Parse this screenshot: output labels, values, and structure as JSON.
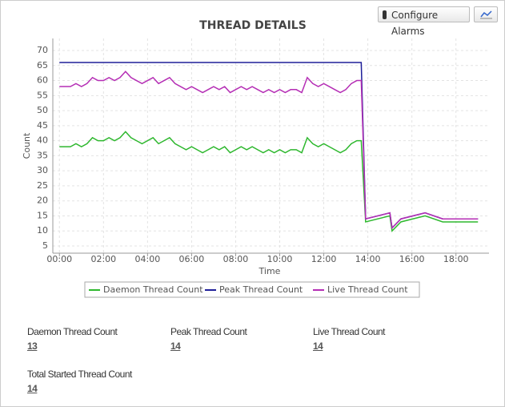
{
  "toolbar": {
    "configure_button": "Configure Alarms"
  },
  "chart_data": {
    "type": "line",
    "title": "THREAD DETAILS",
    "x_label": "Time",
    "y_label": "Count",
    "x": [
      0,
      0.25,
      0.5,
      0.75,
      1,
      1.25,
      1.5,
      1.75,
      2,
      2.25,
      2.5,
      2.75,
      3,
      3.25,
      3.5,
      3.75,
      4,
      4.25,
      4.5,
      4.75,
      5,
      5.25,
      5.5,
      5.75,
      6,
      6.25,
      6.5,
      6.75,
      7,
      7.25,
      7.5,
      7.75,
      8,
      8.25,
      8.5,
      8.75,
      9,
      9.25,
      9.5,
      9.75,
      10,
      10.25,
      10.5,
      10.75,
      11,
      11.25,
      11.5,
      11.75,
      12,
      12.25,
      12.5,
      12.75,
      13,
      13.25,
      13.5,
      13.7,
      13.9,
      15,
      15.1,
      15.5,
      16.6,
      17.4,
      19
    ],
    "series": [
      {
        "name": "Daemon Thread Count",
        "color": "#2eb82e",
        "values": [
          38,
          38,
          38,
          39,
          38,
          39,
          41,
          40,
          40,
          41,
          40,
          41,
          43,
          41,
          40,
          39,
          40,
          41,
          39,
          40,
          41,
          39,
          38,
          37,
          38,
          37,
          36,
          37,
          38,
          37,
          38,
          36,
          37,
          38,
          37,
          38,
          37,
          36,
          37,
          36,
          37,
          36,
          37,
          37,
          36,
          41,
          39,
          38,
          39,
          38,
          37,
          36,
          37,
          39,
          40,
          40,
          13,
          15,
          10,
          13,
          15,
          13,
          13
        ]
      },
      {
        "name": "Peak Thread Count",
        "color": "#1f1f99",
        "values": [
          66,
          66,
          66,
          66,
          66,
          66,
          66,
          66,
          66,
          66,
          66,
          66,
          66,
          66,
          66,
          66,
          66,
          66,
          66,
          66,
          66,
          66,
          66,
          66,
          66,
          66,
          66,
          66,
          66,
          66,
          66,
          66,
          66,
          66,
          66,
          66,
          66,
          66,
          66,
          66,
          66,
          66,
          66,
          66,
          66,
          66,
          66,
          66,
          66,
          66,
          66,
          66,
          66,
          66,
          66,
          66,
          14,
          16,
          11,
          14,
          16,
          14,
          14
        ]
      },
      {
        "name": "Live Thread Count",
        "color": "#b52eb5",
        "values": [
          58,
          58,
          58,
          59,
          58,
          59,
          61,
          60,
          60,
          61,
          60,
          61,
          63,
          61,
          60,
          59,
          60,
          61,
          59,
          60,
          61,
          59,
          58,
          57,
          58,
          57,
          56,
          57,
          58,
          57,
          58,
          56,
          57,
          58,
          57,
          58,
          57,
          56,
          57,
          56,
          57,
          56,
          57,
          57,
          56,
          61,
          59,
          58,
          59,
          58,
          57,
          56,
          57,
          59,
          60,
          60,
          14,
          16,
          11,
          14,
          16,
          14,
          14
        ]
      }
    ],
    "xlim": [
      -0.3,
      19.5
    ],
    "xticks": [
      {
        "value": 0,
        "label": "00:00"
      },
      {
        "value": 2,
        "label": "02:00"
      },
      {
        "value": 4,
        "label": "04:00"
      },
      {
        "value": 6,
        "label": "06:00"
      },
      {
        "value": 8,
        "label": "08:00"
      },
      {
        "value": 10,
        "label": "10:00"
      },
      {
        "value": 12,
        "label": "12:00"
      },
      {
        "value": 14,
        "label": "14:00"
      },
      {
        "value": 16,
        "label": "16:00"
      },
      {
        "value": 18,
        "label": "18:00"
      }
    ],
    "ylim": [
      2.6,
      74
    ],
    "yticks": [
      5,
      10,
      15,
      20,
      25,
      30,
      35,
      40,
      45,
      50,
      55,
      60,
      65,
      70
    ],
    "grid": true
  },
  "summary": [
    {
      "label": "Daemon Thread Count",
      "value": "13"
    },
    {
      "label": "Peak Thread Count",
      "value": "14"
    },
    {
      "label": "Live Thread Count",
      "value": "14"
    },
    {
      "label": "Total Started Thread Count",
      "value": "14"
    }
  ]
}
